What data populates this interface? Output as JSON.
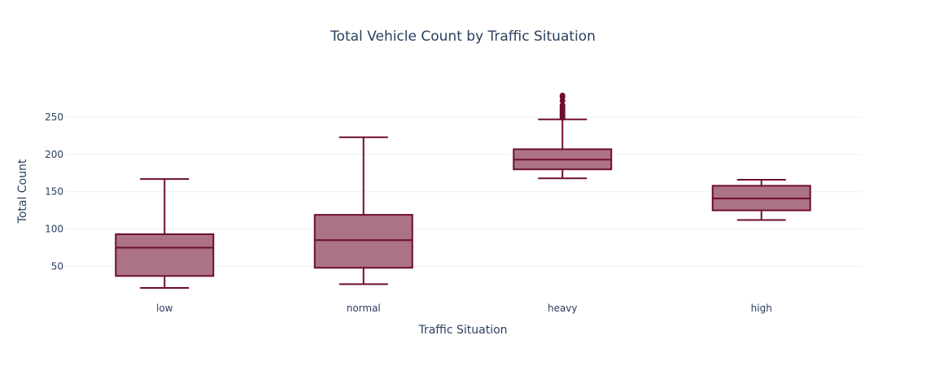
{
  "chart_data": {
    "type": "box",
    "title": "Total Vehicle Count by Traffic Situation",
    "xlabel": "Traffic Situation",
    "ylabel": "Total Count",
    "categories": [
      "low",
      "normal",
      "heavy",
      "high"
    ],
    "ylim": [
      9,
      298
    ],
    "yticks": [
      50,
      100,
      150,
      200,
      250
    ],
    "grid": true,
    "fill_color": "#ac7384",
    "line_color": "#6e0e2e",
    "boxes": [
      {
        "category": "low",
        "min": 21,
        "q1": 37,
        "median": 75,
        "q3": 93,
        "max": 167,
        "outliers": []
      },
      {
        "category": "normal",
        "min": 26,
        "q1": 48,
        "median": 85,
        "q3": 119,
        "max": 223,
        "outliers": []
      },
      {
        "category": "heavy",
        "min": 168,
        "q1": 180,
        "median": 193,
        "q3": 207,
        "max": 247,
        "outliers": [
          249,
          251,
          253,
          255,
          257,
          259,
          261,
          264,
          266,
          272,
          277,
          279
        ]
      },
      {
        "category": "high",
        "min": 112,
        "q1": 125,
        "median": 141,
        "q3": 158,
        "max": 166,
        "outliers": []
      }
    ]
  }
}
